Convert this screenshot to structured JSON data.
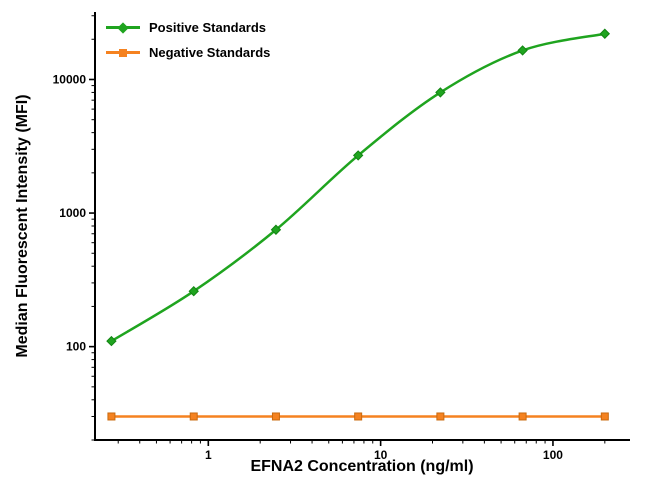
{
  "figure": {
    "background": "#FFFFFF",
    "axis_color": "#000000",
    "text_color": "#000000"
  },
  "chart_data": {
    "type": "line",
    "title": "",
    "xlabel": "EFNA2 Concentration (ng/ml)",
    "ylabel": "Median Fluorescent Intensity (MFI)",
    "x_scale": "log",
    "y_scale": "log",
    "xlim": [
      0.22,
      280
    ],
    "ylim": [
      20,
      32000
    ],
    "x_ticks": [
      1,
      10,
      100
    ],
    "y_ticks": [
      100,
      1000,
      10000
    ],
    "grid": false,
    "legend_position": "top-left",
    "x": [
      0.274,
      0.823,
      2.469,
      7.407,
      22.22,
      66.67,
      200
    ],
    "series": [
      {
        "name": "Positive Standards",
        "color": "#1FA41F",
        "marker": "diamond",
        "marker_edge": "#128412",
        "values": [
          110,
          260,
          750,
          2700,
          8000,
          16500,
          22000
        ]
      },
      {
        "name": "Negative Standards",
        "color": "#F58220",
        "marker": "square",
        "marker_edge": "#C96A10",
        "values": [
          30,
          30,
          30,
          30,
          30,
          30,
          30
        ]
      }
    ]
  }
}
